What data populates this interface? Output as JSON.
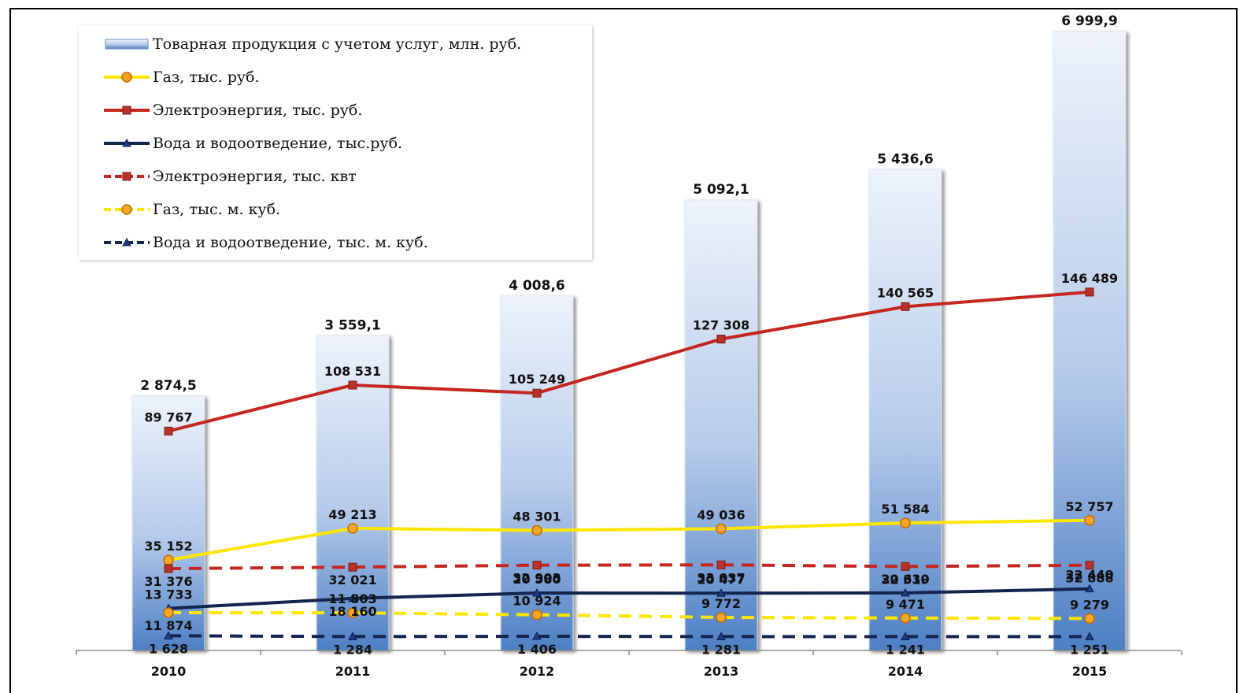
{
  "chart_data": {
    "type": "bar",
    "categories": [
      "2010",
      "2011",
      "2012",
      "2013",
      "2014",
      "2015"
    ],
    "bar_series": {
      "name": "Товарная продукция с учетом услуг, млн. руб.",
      "values": [
        2874.5,
        3559.1,
        4008.6,
        5092.1,
        5436.6,
        6999.9
      ],
      "labels": [
        "2 874,5",
        "3 559,1",
        "4 008,6",
        "5 092,1",
        "5 436,6",
        "6 999,9"
      ],
      "color": "#9db9e0"
    },
    "line_series": [
      {
        "name": "Газ, тыс. руб.",
        "color": "#ffe600",
        "dash": false,
        "marker": "circle",
        "values": [
          35152,
          49213,
          48301,
          49036,
          51584,
          52757
        ],
        "labels": [
          "35 152",
          "49 213",
          "48 301",
          "49 036",
          "51 584",
          "52 757"
        ]
      },
      {
        "name": "Электроэнергия, тыс. руб.",
        "color": "#c4271f",
        "dash": false,
        "marker": "square",
        "values": [
          89767,
          108531,
          105249,
          127308,
          140565,
          146489
        ],
        "labels": [
          "89 767",
          "108 531",
          "105 249",
          "127 308",
          "140 565",
          "146 489"
        ]
      },
      {
        "name": "Вода и водоотведение, тыс.руб.",
        "color": "#14264f",
        "dash": false,
        "marker": "triangle",
        "values": [
          13733,
          18160,
          20580,
          20477,
          20630,
          22440
        ],
        "labels": [
          "13 733",
          "18 160",
          "20 580",
          "20 477",
          "20 630",
          "22 440"
        ]
      },
      {
        "name": "Электроэнергия, тыс. квт",
        "color": "#c4271f",
        "dash": true,
        "marker": "square",
        "values": [
          31376,
          32021,
          32903,
          33037,
          32319,
          32888
        ],
        "labels": [
          "31 376",
          "32 021",
          "32 903",
          "33 037",
          "32 319",
          "32 888"
        ]
      },
      {
        "name": "Газ, тыс. м. куб.",
        "color": "#ffe600",
        "dash": true,
        "marker": "circle",
        "values": [
          11874,
          11803,
          10924,
          9772,
          9471,
          9279
        ],
        "labels": [
          "11 874",
          "11 803",
          "10 924",
          "9 772",
          "9 471",
          "9 279"
        ]
      },
      {
        "name": "Вода и водоотведение, тыс. м. куб.",
        "color": "#14264f",
        "dash": true,
        "marker": "triangle",
        "values": [
          1628,
          1284,
          1406,
          1281,
          1241,
          1251
        ],
        "labels": [
          "1 628",
          "1 284",
          "1 406",
          "1 281",
          "1 241",
          "1 251"
        ]
      }
    ],
    "title": "",
    "xlabel": "",
    "ylabel": "",
    "bar_ylim": [
      0,
      7200
    ],
    "line_ylim": [
      0,
      160000
    ],
    "grid": false,
    "legend_position": "top-left"
  }
}
